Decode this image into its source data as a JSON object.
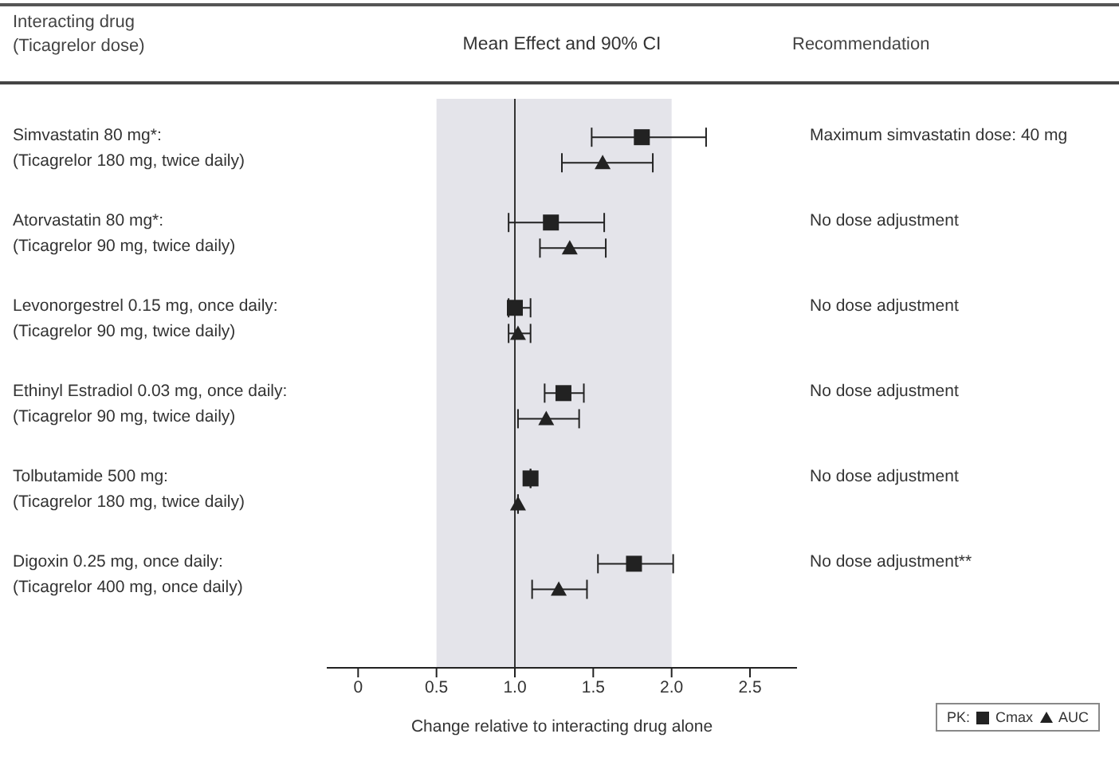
{
  "chart_data": {
    "type": "scatter",
    "orientation": "horizontal",
    "title": "Mean Effect and 90% CI",
    "ylabel": "Interacting drug\n(Ticagrelor dose)",
    "xlabel": "Change relative to interacting drug alone",
    "legend_title": "PK:",
    "legend": "bottom right",
    "categories": [
      "Simvastatin 80 mg*:\n(Ticagrelor 180 mg, twice daily)",
      "Atorvastatin 80 mg*:\n(Ticagrelor 90 mg, twice daily)",
      "Levonorgestrel 0.15 mg, once daily:\n(Ticagrelor 90 mg, twice daily)",
      "Ethinyl Estradiol 0.03 mg, once daily:\n(Ticagrelor 90 mg, twice daily)",
      "Tolbutamide 500 mg:\n(Ticagrelor 180 mg, twice daily)",
      "Digoxin 0.25 mg, once daily:\n(Ticagrelor 400 mg, once daily)"
    ],
    "series": [
      {
        "name": "Cmax",
        "color": "#222222",
        "marker": "square",
        "values": [
          1.81,
          1.23,
          1.0,
          1.31,
          1.1,
          1.76
        ],
        "errors": [
          [
            1.49,
            2.22
          ],
          [
            0.96,
            1.57
          ],
          [
            0.96,
            1.1
          ],
          [
            1.19,
            1.44
          ],
          null,
          [
            1.53,
            2.01
          ]
        ]
      },
      {
        "name": "AUC",
        "color": "#222222",
        "marker": "triangle",
        "values": [
          1.56,
          1.35,
          1.02,
          1.2,
          1.02,
          1.28
        ],
        "errors": [
          [
            1.3,
            1.88
          ],
          [
            1.16,
            1.58
          ],
          [
            0.96,
            1.1
          ],
          [
            1.02,
            1.41
          ],
          null,
          [
            1.11,
            1.46
          ]
        ]
      }
    ],
    "xlim": [
      -0.2,
      2.8
    ],
    "xticks": [
      0,
      0.5,
      {
        "value": 1,
        "label": "1.0"
      },
      1.5,
      {
        "value": 2,
        "label": "2.0"
      },
      2.5
    ],
    "bands": [
      {
        "axis": "x",
        "from": 0.5,
        "to": 2,
        "color": "#e4e4ea"
      }
    ],
    "ref_lines": [
      {
        "axis": "x",
        "value": 1,
        "color": "#333333"
      }
    ],
    "annotations": [
      "Recommendation",
      "Maximum simvastatin dose: 40 mg",
      "No dose adjustment",
      "No dose adjustment",
      "No dose adjustment",
      "No dose adjustment",
      "No dose adjustment**"
    ]
  }
}
